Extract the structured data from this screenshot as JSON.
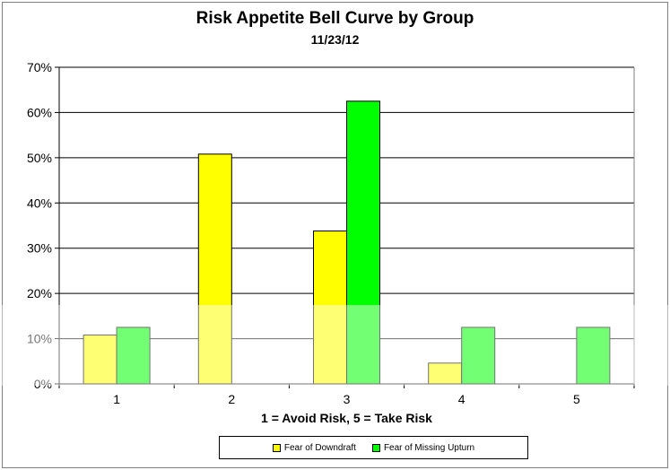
{
  "chart_data": {
    "type": "bar",
    "title": "Risk Appetite Bell Curve by Group",
    "subtitle": "11/23/12",
    "xlabel": "1 = Avoid Risk, 5 =  Take Risk",
    "ylabel": "",
    "categories": [
      "1",
      "2",
      "3",
      "4",
      "5"
    ],
    "ylim": [
      0,
      70
    ],
    "yticks": [
      "0%",
      "10%",
      "20%",
      "30%",
      "40%",
      "50%",
      "60%",
      "70%"
    ],
    "grid": true,
    "legend_position": "bottom",
    "series": [
      {
        "name": "Fear of Downdraft",
        "color": "#ffff00",
        "values": [
          10.8,
          50.8,
          33.8,
          4.6,
          0
        ]
      },
      {
        "name": "Fear of Missing Upturn",
        "color": "#00ff00",
        "values": [
          12.5,
          0,
          62.5,
          12.5,
          12.5
        ]
      }
    ]
  }
}
